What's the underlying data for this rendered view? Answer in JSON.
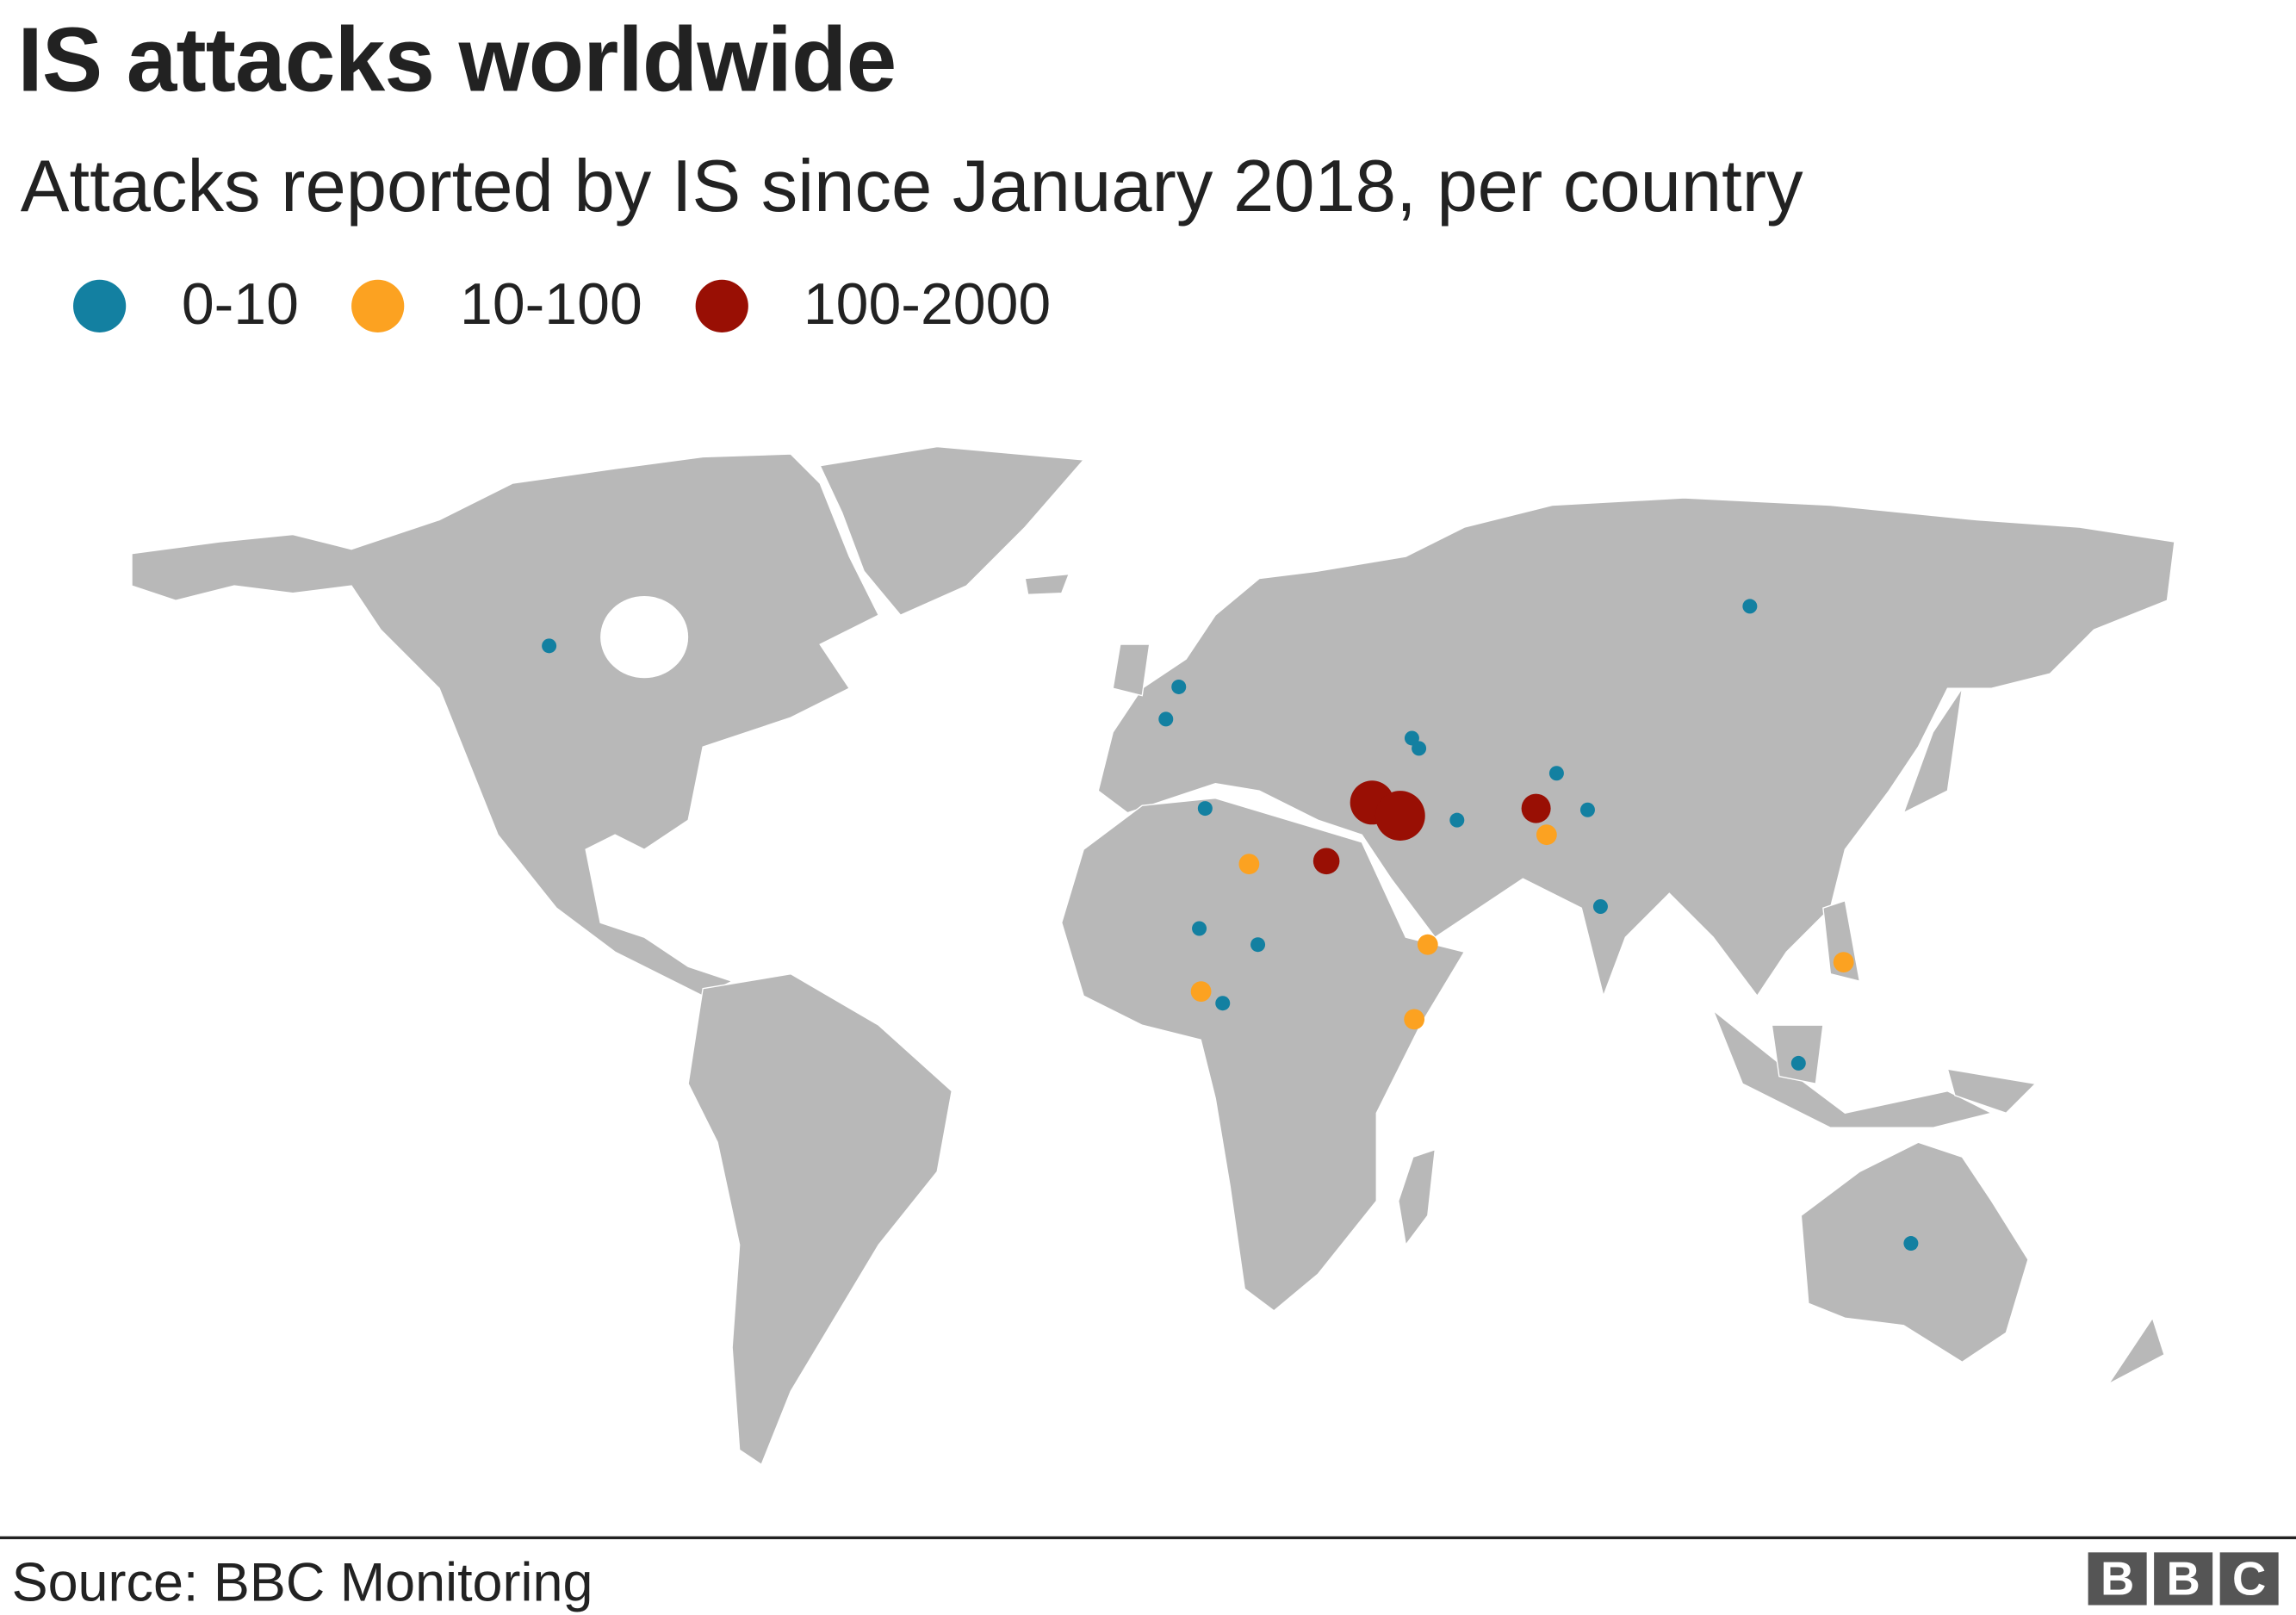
{
  "title": "IS attacks worldwide",
  "subtitle": "Attacks reported by IS since January 2018, per country",
  "legend": [
    {
      "label": "0-10",
      "color": "#1380a1"
    },
    {
      "label": "10-100",
      "color": "#fca221"
    },
    {
      "label": "100-2000",
      "color": "#990f04"
    }
  ],
  "map": {
    "land_color": "#b8b8b8",
    "border_color": "#ffffff",
    "markers": [
      {
        "lon": -102.5,
        "lat": 55.8,
        "category": "0-10"
      },
      {
        "lon": 102.5,
        "lat": 61.2,
        "category": "0-10"
      },
      {
        "lon": 5,
        "lat": 50.2,
        "category": "0-10"
      },
      {
        "lon": 2.8,
        "lat": 45.8,
        "category": "0-10"
      },
      {
        "lon": 44.8,
        "lat": 43.2,
        "category": "0-10"
      },
      {
        "lon": 46,
        "lat": 41.8,
        "category": "0-10"
      },
      {
        "lon": 69.5,
        "lat": 38.4,
        "category": "0-10"
      },
      {
        "lon": 74.8,
        "lat": 33.4,
        "category": "0-10"
      },
      {
        "lon": 52.5,
        "lat": 32,
        "category": "0-10"
      },
      {
        "lon": 9.5,
        "lat": 33.6,
        "category": "0-10"
      },
      {
        "lon": 77,
        "lat": 20.2,
        "category": "0-10"
      },
      {
        "lon": 8.5,
        "lat": 17.2,
        "category": "0-10"
      },
      {
        "lon": 18.5,
        "lat": 15,
        "category": "0-10"
      },
      {
        "lon": 12.5,
        "lat": 7,
        "category": "0-10"
      },
      {
        "lon": 110.8,
        "lat": -1.2,
        "category": "0-10"
      },
      {
        "lon": 130,
        "lat": -25.8,
        "category": "0-10"
      },
      {
        "lon": 17,
        "lat": 26,
        "category": "10-100"
      },
      {
        "lon": 67.8,
        "lat": 30,
        "category": "10-100"
      },
      {
        "lon": 47.5,
        "lat": 15,
        "category": "10-100"
      },
      {
        "lon": 8.8,
        "lat": 8.6,
        "category": "10-100"
      },
      {
        "lon": 45.2,
        "lat": 4.8,
        "category": "10-100"
      },
      {
        "lon": 118.5,
        "lat": 12.6,
        "category": "10-100"
      },
      {
        "lon": 38,
        "lat": 34.4,
        "category": "100-2000"
      },
      {
        "lon": 42.8,
        "lat": 32.6,
        "category": "100-2000"
      },
      {
        "lon": 30.2,
        "lat": 26.4,
        "category": "100-2000"
      },
      {
        "lon": 66,
        "lat": 33.6,
        "category": "100-2000"
      }
    ]
  },
  "footer": {
    "source": "Source: BBC Monitoring",
    "logo": "BBC",
    "logo_letters": [
      "B",
      "B",
      "C"
    ]
  }
}
